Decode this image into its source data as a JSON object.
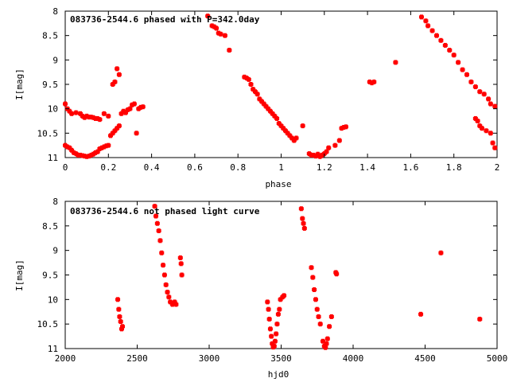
{
  "chart_data": [
    {
      "type": "scatter",
      "title": "083736-2544.6 phased with P=342.0day",
      "xlabel": "phase",
      "ylabel": "I[mag]",
      "xlim": [
        0,
        2
      ],
      "ylim": [
        11,
        8
      ],
      "y_inverted": true,
      "x_ticks": [
        0,
        0.2,
        0.4,
        0.6,
        0.8,
        1,
        1.2,
        1.4,
        1.6,
        1.8,
        2
      ],
      "x_tick_labels": [
        "0",
        "0.2",
        "0.4",
        "0.6",
        "0.8",
        "1",
        "1.2",
        "1.4",
        "1.6",
        "1.8",
        "2"
      ],
      "y_ticks": [
        8,
        8.5,
        9,
        9.5,
        10,
        10.5,
        11
      ],
      "y_tick_labels": [
        "8",
        "8.5",
        "9",
        "9.5",
        "10",
        "10.5",
        "11"
      ],
      "grid": false,
      "marker_color": "#ff0000",
      "points": [
        [
          0.0,
          9.9
        ],
        [
          0.01,
          10.0
        ],
        [
          0.02,
          10.05
        ],
        [
          0.03,
          10.1
        ],
        [
          0.05,
          10.08
        ],
        [
          0.07,
          10.1
        ],
        [
          0.08,
          10.15
        ],
        [
          0.09,
          10.18
        ],
        [
          0.1,
          10.15
        ],
        [
          0.11,
          10.17
        ],
        [
          0.12,
          10.17
        ],
        [
          0.13,
          10.18
        ],
        [
          0.14,
          10.2
        ],
        [
          0.15,
          10.2
        ],
        [
          0.16,
          10.22
        ],
        [
          0.18,
          10.1
        ],
        [
          0.2,
          10.15
        ],
        [
          0.0,
          10.75
        ],
        [
          0.01,
          10.78
        ],
        [
          0.02,
          10.8
        ],
        [
          0.03,
          10.85
        ],
        [
          0.04,
          10.9
        ],
        [
          0.05,
          10.92
        ],
        [
          0.06,
          10.95
        ],
        [
          0.07,
          10.95
        ],
        [
          0.08,
          10.96
        ],
        [
          0.09,
          10.97
        ],
        [
          0.1,
          10.98
        ],
        [
          0.11,
          10.97
        ],
        [
          0.12,
          10.95
        ],
        [
          0.13,
          10.93
        ],
        [
          0.14,
          10.9
        ],
        [
          0.15,
          10.88
        ],
        [
          0.16,
          10.82
        ],
        [
          0.17,
          10.8
        ],
        [
          0.18,
          10.78
        ],
        [
          0.19,
          10.76
        ],
        [
          0.2,
          10.75
        ],
        [
          0.21,
          10.55
        ],
        [
          0.22,
          10.5
        ],
        [
          0.23,
          10.45
        ],
        [
          0.24,
          10.4
        ],
        [
          0.25,
          10.35
        ],
        [
          0.26,
          10.1
        ],
        [
          0.27,
          10.05
        ],
        [
          0.28,
          10.08
        ],
        [
          0.29,
          10.02
        ],
        [
          0.3,
          10.0
        ],
        [
          0.31,
          9.92
        ],
        [
          0.32,
          9.9
        ],
        [
          0.33,
          10.5
        ],
        [
          0.34,
          10.0
        ],
        [
          0.35,
          9.97
        ],
        [
          0.36,
          9.96
        ],
        [
          0.22,
          9.5
        ],
        [
          0.23,
          9.45
        ],
        [
          0.24,
          9.18
        ],
        [
          0.25,
          9.3
        ],
        [
          0.66,
          8.1
        ],
        [
          0.68,
          8.3
        ],
        [
          0.69,
          8.32
        ],
        [
          0.7,
          8.35
        ],
        [
          0.71,
          8.45
        ],
        [
          0.72,
          8.47
        ],
        [
          0.74,
          8.5
        ],
        [
          0.76,
          8.8
        ],
        [
          0.83,
          9.35
        ],
        [
          0.84,
          9.37
        ],
        [
          0.85,
          9.4
        ],
        [
          0.86,
          9.5
        ],
        [
          0.87,
          9.6
        ],
        [
          0.88,
          9.65
        ],
        [
          0.89,
          9.7
        ],
        [
          0.9,
          9.8
        ],
        [
          0.91,
          9.85
        ],
        [
          0.92,
          9.9
        ],
        [
          0.93,
          9.95
        ],
        [
          0.94,
          10.0
        ],
        [
          0.95,
          10.05
        ],
        [
          0.96,
          10.1
        ],
        [
          0.97,
          10.15
        ],
        [
          0.98,
          10.2
        ],
        [
          0.99,
          10.3
        ],
        [
          1.0,
          10.35
        ],
        [
          1.01,
          10.4
        ],
        [
          1.02,
          10.45
        ],
        [
          1.03,
          10.5
        ],
        [
          1.04,
          10.55
        ],
        [
          1.05,
          10.6
        ],
        [
          1.06,
          10.65
        ],
        [
          1.07,
          10.6
        ],
        [
          1.1,
          10.35
        ],
        [
          1.13,
          10.92
        ],
        [
          1.14,
          10.95
        ],
        [
          1.15,
          10.95
        ],
        [
          1.16,
          10.97
        ],
        [
          1.17,
          10.93
        ],
        [
          1.18,
          10.98
        ],
        [
          1.19,
          10.95
        ],
        [
          1.2,
          10.92
        ],
        [
          1.21,
          10.88
        ],
        [
          1.22,
          10.8
        ],
        [
          1.25,
          10.75
        ],
        [
          1.27,
          10.65
        ],
        [
          1.28,
          10.4
        ],
        [
          1.29,
          10.38
        ],
        [
          1.3,
          10.37
        ],
        [
          1.41,
          9.45
        ],
        [
          1.42,
          9.47
        ],
        [
          1.43,
          9.45
        ],
        [
          1.53,
          9.05
        ],
        [
          1.65,
          8.12
        ],
        [
          1.67,
          8.2
        ],
        [
          1.68,
          8.3
        ],
        [
          1.7,
          8.4
        ],
        [
          1.72,
          8.5
        ],
        [
          1.74,
          8.6
        ],
        [
          1.76,
          8.7
        ],
        [
          1.78,
          8.8
        ],
        [
          1.8,
          8.9
        ],
        [
          1.82,
          9.05
        ],
        [
          1.84,
          9.2
        ],
        [
          1.86,
          9.3
        ],
        [
          1.88,
          9.45
        ],
        [
          1.9,
          9.55
        ],
        [
          1.92,
          9.65
        ],
        [
          1.94,
          9.7
        ],
        [
          1.96,
          9.8
        ],
        [
          1.97,
          9.9
        ],
        [
          1.99,
          9.95
        ],
        [
          1.9,
          10.2
        ],
        [
          1.91,
          10.25
        ],
        [
          1.92,
          10.35
        ],
        [
          1.93,
          10.4
        ],
        [
          1.95,
          10.45
        ],
        [
          1.97,
          10.5
        ],
        [
          1.98,
          10.7
        ],
        [
          1.99,
          10.8
        ]
      ]
    },
    {
      "type": "scatter",
      "title": "083736-2544.6 not phased light curve",
      "xlabel": "hjd0",
      "ylabel": "I[mag]",
      "xlim": [
        2000,
        5000
      ],
      "ylim": [
        11,
        8
      ],
      "y_inverted": true,
      "x_ticks": [
        2000,
        2500,
        3000,
        3500,
        4000,
        4500,
        5000
      ],
      "x_tick_labels": [
        "2000",
        "2500",
        "3000",
        "3500",
        "4000",
        "4500",
        "5000"
      ],
      "y_ticks": [
        8,
        8.5,
        9,
        9.5,
        10,
        10.5,
        11
      ],
      "y_tick_labels": [
        "8",
        "8.5",
        "9",
        "9.5",
        "10",
        "10.5",
        "11"
      ],
      "grid": false,
      "marker_color": "#ff0000",
      "points": [
        [
          2365,
          10.0
        ],
        [
          2372,
          10.2
        ],
        [
          2378,
          10.35
        ],
        [
          2385,
          10.45
        ],
        [
          2392,
          10.6
        ],
        [
          2398,
          10.55
        ],
        [
          2622,
          8.1
        ],
        [
          2630,
          8.3
        ],
        [
          2640,
          8.45
        ],
        [
          2650,
          8.6
        ],
        [
          2660,
          8.8
        ],
        [
          2670,
          9.05
        ],
        [
          2680,
          9.3
        ],
        [
          2690,
          9.5
        ],
        [
          2700,
          9.7
        ],
        [
          2710,
          9.85
        ],
        [
          2720,
          9.95
        ],
        [
          2730,
          10.05
        ],
        [
          2745,
          10.1
        ],
        [
          2760,
          10.05
        ],
        [
          2770,
          10.1
        ],
        [
          2800,
          9.15
        ],
        [
          2805,
          9.27
        ],
        [
          2810,
          9.5
        ],
        [
          3405,
          10.05
        ],
        [
          3412,
          10.2
        ],
        [
          3418,
          10.4
        ],
        [
          3425,
          10.6
        ],
        [
          3432,
          10.75
        ],
        [
          3438,
          10.9
        ],
        [
          3445,
          10.97
        ],
        [
          3452,
          10.95
        ],
        [
          3458,
          10.85
        ],
        [
          3465,
          10.7
        ],
        [
          3472,
          10.5
        ],
        [
          3480,
          10.3
        ],
        [
          3488,
          10.2
        ],
        [
          3495,
          10.0
        ],
        [
          3510,
          9.95
        ],
        [
          3520,
          9.92
        ],
        [
          3640,
          8.15
        ],
        [
          3648,
          8.35
        ],
        [
          3655,
          8.45
        ],
        [
          3662,
          8.55
        ],
        [
          3710,
          9.35
        ],
        [
          3720,
          9.55
        ],
        [
          3730,
          9.8
        ],
        [
          3740,
          10.0
        ],
        [
          3750,
          10.2
        ],
        [
          3760,
          10.35
        ],
        [
          3772,
          10.5
        ],
        [
          3790,
          10.85
        ],
        [
          3800,
          10.95
        ],
        [
          3808,
          10.98
        ],
        [
          3815,
          10.9
        ],
        [
          3822,
          10.8
        ],
        [
          3835,
          10.55
        ],
        [
          3850,
          10.35
        ],
        [
          3880,
          9.45
        ],
        [
          3885,
          9.48
        ],
        [
          4470,
          10.3
        ],
        [
          4610,
          9.05
        ],
        [
          4880,
          10.4
        ]
      ]
    }
  ]
}
